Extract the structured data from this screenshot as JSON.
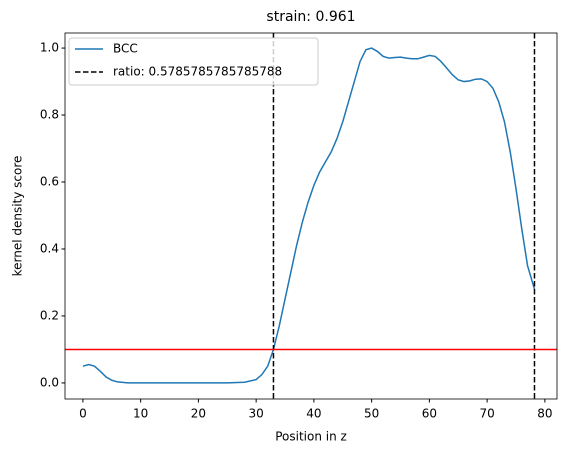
{
  "chart_data": {
    "type": "line",
    "title": "strain: 0.961",
    "x_label": "Position in z",
    "y_label": "kernel density score",
    "x": [
      0,
      1,
      2,
      3,
      4,
      5,
      6,
      8,
      10,
      15,
      20,
      25,
      28,
      30,
      31,
      32,
      33,
      34,
      35,
      36,
      37,
      38,
      39,
      40,
      41,
      42,
      43,
      44,
      45,
      46,
      47,
      48,
      49,
      50,
      51,
      52,
      53,
      54,
      55,
      56,
      57,
      58,
      59,
      60,
      61,
      62,
      63,
      64,
      65,
      66,
      67,
      68,
      69,
      70,
      71,
      72,
      73,
      74,
      75,
      76,
      77,
      78.2
    ],
    "series": [
      {
        "name": "BCC",
        "color": "#1f77b4",
        "values": [
          0.05,
          0.055,
          0.05,
          0.035,
          0.018,
          0.008,
          0.003,
          0,
          0,
          0,
          0,
          0,
          0.002,
          0.01,
          0.025,
          0.05,
          0.1,
          0.17,
          0.25,
          0.33,
          0.41,
          0.48,
          0.54,
          0.59,
          0.63,
          0.66,
          0.69,
          0.73,
          0.78,
          0.84,
          0.9,
          0.96,
          0.995,
          1.0,
          0.99,
          0.975,
          0.97,
          0.972,
          0.973,
          0.97,
          0.968,
          0.968,
          0.973,
          0.978,
          0.975,
          0.96,
          0.94,
          0.92,
          0.905,
          0.9,
          0.902,
          0.907,
          0.908,
          0.9,
          0.88,
          0.84,
          0.78,
          0.69,
          0.58,
          0.46,
          0.35,
          0.28
        ]
      }
    ],
    "vlines": {
      "name": "ratio: 0.5785785785785788",
      "color": "#000000",
      "values": [
        33.0,
        78.2
      ]
    },
    "hline": {
      "value": 0.1,
      "color": "#ff0000"
    },
    "xlim": [
      -3.1,
      82.1
    ],
    "ylim": [
      -0.048,
      1.045
    ],
    "xticks": [
      0,
      10,
      20,
      30,
      40,
      50,
      60,
      70,
      80
    ],
    "yticks": [
      {
        "value": 0,
        "label": "0.0"
      },
      0.2,
      0.4,
      0.6,
      0.8,
      {
        "value": 1,
        "label": "1.0"
      }
    ],
    "legend": "upper left"
  }
}
